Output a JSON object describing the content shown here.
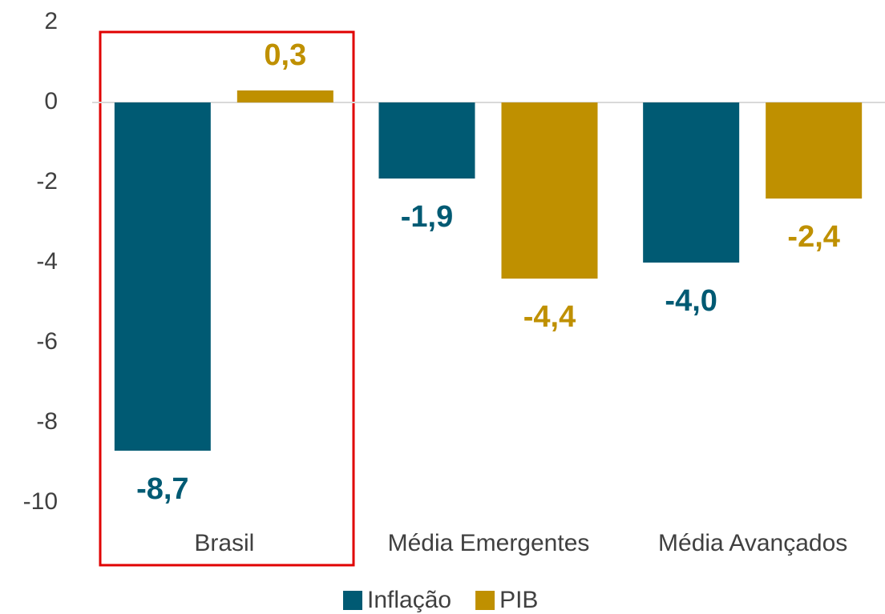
{
  "chart_data": {
    "type": "bar",
    "categories": [
      "Brasil",
      "Média Emergentes",
      "Média Avançados"
    ],
    "series": [
      {
        "name": "Inflação",
        "color": "#005a73",
        "values": [
          -8.7,
          -1.9,
          -4.0
        ],
        "value_labels": [
          "-8,7",
          "-1,9",
          "-4,0"
        ]
      },
      {
        "name": "PIB",
        "color": "#bf9000",
        "values": [
          0.3,
          -4.4,
          -2.4
        ],
        "value_labels": [
          "0,3",
          "-4,4",
          "-2,4"
        ]
      }
    ],
    "ylim": [
      -10,
      2
    ],
    "yticks": [
      2,
      0,
      -2,
      -4,
      -6,
      -8,
      -10
    ],
    "legend": "bottom"
  }
}
